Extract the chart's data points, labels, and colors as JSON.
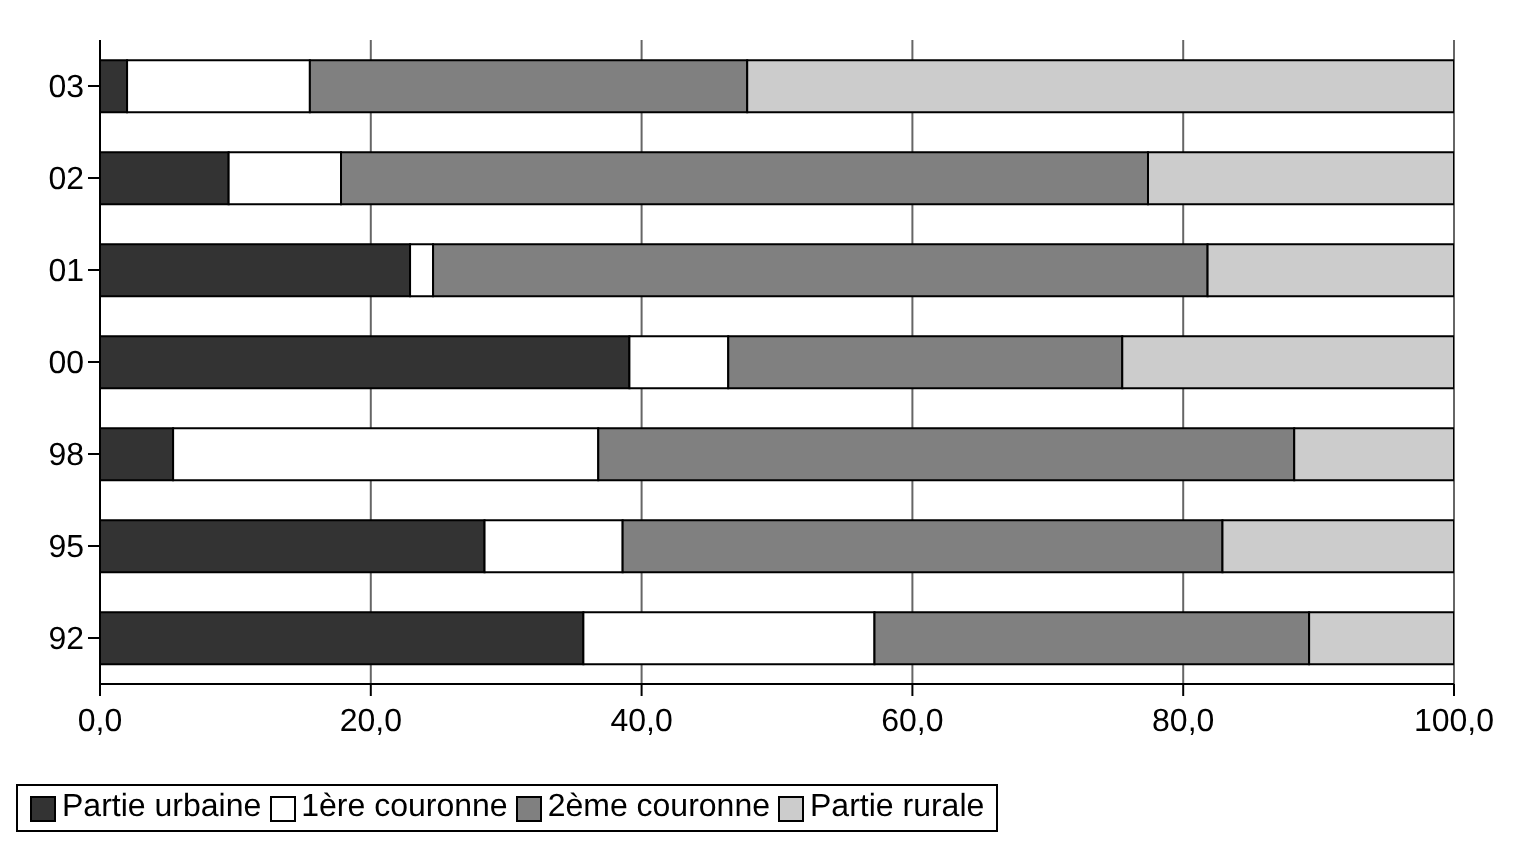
{
  "chart_data": {
    "type": "bar",
    "orientation": "horizontal",
    "stacked": true,
    "categories": [
      "03",
      "02",
      "01",
      "00",
      "98",
      "95",
      "92"
    ],
    "series": [
      {
        "name": "Partie urbaine",
        "color": "#333333",
        "values": [
          2.0,
          9.5,
          22.9,
          39.1,
          5.4,
          28.4,
          35.7
        ]
      },
      {
        "name": "1ère couronne",
        "color": "#ffffff",
        "values": [
          13.5,
          8.3,
          1.7,
          7.3,
          31.4,
          10.2,
          21.5
        ]
      },
      {
        "name": "2ème couronne",
        "color": "#808080",
        "values": [
          32.3,
          59.6,
          57.2,
          29.1,
          51.4,
          44.3,
          32.1
        ]
      },
      {
        "name": "Partie rurale",
        "color": "#cccccc",
        "values": [
          52.2,
          22.6,
          18.2,
          24.5,
          11.8,
          17.1,
          10.7
        ]
      }
    ],
    "xlim": [
      0,
      100
    ],
    "xticks": [
      {
        "value": 0,
        "label": "0,0"
      },
      {
        "value": 20,
        "label": "20,0"
      },
      {
        "value": 40,
        "label": "40,0"
      },
      {
        "value": 60,
        "label": "60,0"
      },
      {
        "value": 80,
        "label": "80,0"
      },
      {
        "value": 100,
        "label": "100,0"
      }
    ],
    "grid": "x",
    "legend": "bottom"
  }
}
